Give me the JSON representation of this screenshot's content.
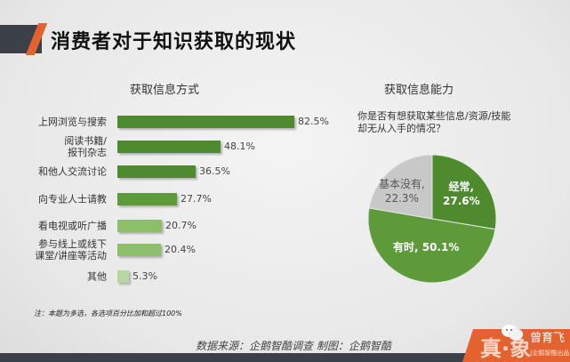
{
  "header": {
    "title": "消费者对于知识获取的现状"
  },
  "left_panel": {
    "title": "获取信息方式",
    "note": "注：本题为多选，各选项百分比加和超过100%"
  },
  "right_panel": {
    "title": "获取信息能力",
    "question_line1": "你是否有想获取某些信息/资源/技能",
    "question_line2": "却无从入手的情况？"
  },
  "footer": {
    "source": "数据来源：企鹅智酷调查  制图：企鹅智酷",
    "badge_big": "真·象",
    "badge_name": "曾育飞",
    "badge_sub": "|企鹅智酷出品"
  },
  "colors": {
    "dark_green": "#4e8a2e",
    "mid_green": "#5d9b3a",
    "light_green": "#8dbf6a",
    "pale_green": "#b7d6a2",
    "pie_gray": "#c8c8c8",
    "accent_orange": "#e4622f",
    "dark_slate": "#3c4048"
  },
  "chart_data": [
    {
      "type": "bar",
      "orientation": "horizontal",
      "title": "获取信息方式",
      "categories": [
        "上网浏览与搜索",
        "阅读书籍/报刊杂志",
        "和他人交流讨论",
        "向专业人士请教",
        "看电视或听广播",
        "参与线上或线下课堂/讲座等活动",
        "其他"
      ],
      "labels_display": [
        [
          "上网浏览与搜索"
        ],
        [
          "阅读书籍/",
          "报刊杂志"
        ],
        [
          "和他人交流讨论"
        ],
        [
          "向专业人士请教"
        ],
        [
          "看电视或听广播"
        ],
        [
          "参与线上或线下",
          "课堂/讲座等活动"
        ],
        [
          "其他"
        ]
      ],
      "values": [
        82.5,
        48.1,
        36.5,
        27.7,
        20.7,
        20.4,
        5.3
      ],
      "value_labels": [
        "82.5%",
        "48.1%",
        "36.5%",
        "27.7%",
        "20.7%",
        "20.4%",
        "5.3%"
      ],
      "unit": "%",
      "xlabel": "",
      "ylabel": "",
      "grid": false,
      "note": "注：本题为多选，各选项百分比加和超过100%"
    },
    {
      "type": "pie",
      "title": "获取信息能力",
      "subtitle": "你是否有想获取某些信息/资源/技能却无从入手的情况？",
      "categories": [
        "经常",
        "有时",
        "基本没有"
      ],
      "values": [
        27.6,
        50.1,
        22.3
      ],
      "value_labels": [
        "经常, 27.6%",
        "有时, 50.1%",
        "基本没有, 22.3%"
      ],
      "unit": "%"
    }
  ]
}
